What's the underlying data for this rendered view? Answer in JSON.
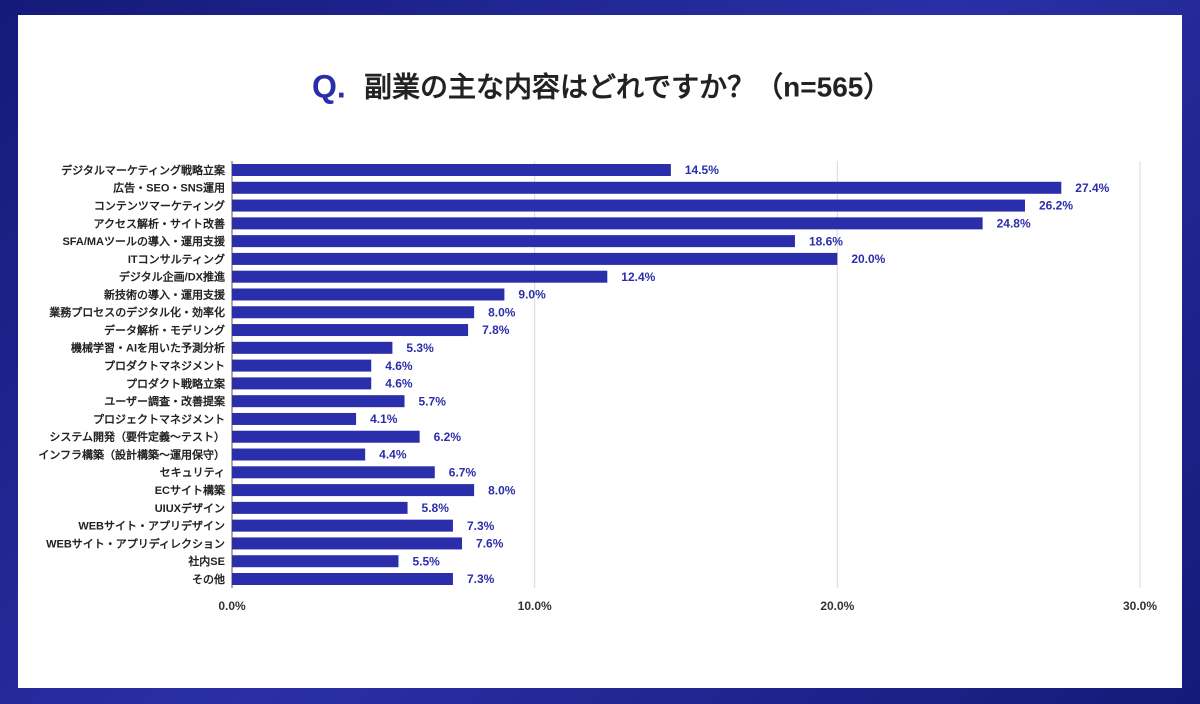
{
  "chart_data": {
    "type": "hbar",
    "title_marker": "Q.",
    "title": "副業の主な内容はどれですか？（n=565）",
    "categories": [
      "デジタルマーケティング戦略立案",
      "広告・SEO・SNS運用",
      "コンテンツマーケティング",
      "アクセス解析・サイト改善",
      "SFA/MAツールの導入・運用支援",
      "ITコンサルティング",
      "デジタル企画/DX推進",
      "新技術の導入・運用支援",
      "業務プロセスのデジタル化・効率化",
      "データ解析・モデリング",
      "機械学習・AIを用いた予測分析",
      "プロダクトマネジメント",
      "プロダクト戦略立案",
      "ユーザー調査・改善提案",
      "プロジェクトマネジメント",
      "システム開発（要件定義～テスト）",
      "インフラ構築（設計構築～運用保守）",
      "セキュリティ",
      "ECサイト構築",
      "UIUXデザイン",
      "WEBサイト・アプリデザイン",
      "WEBサイト・アプリディレクション",
      "社内SE",
      "その他"
    ],
    "values": [
      14.5,
      27.4,
      26.2,
      24.8,
      18.6,
      20.0,
      12.4,
      9.0,
      8.0,
      7.8,
      5.3,
      4.6,
      4.6,
      5.7,
      4.1,
      6.2,
      4.4,
      6.7,
      8.0,
      5.8,
      7.3,
      7.6,
      5.5,
      7.3
    ],
    "value_labels": [
      "14.5%",
      "27.4%",
      "26.2%",
      "24.8%",
      "18.6%",
      "20.0%",
      "12.4%",
      "9.0%",
      "8.0%",
      "7.8%",
      "5.3%",
      "4.6%",
      "4.6%",
      "5.7%",
      "4.1%",
      "6.2%",
      "4.4%",
      "6.7%",
      "8.0%",
      "5.8%",
      "7.3%",
      "7.6%",
      "5.5%",
      "7.3%"
    ],
    "color": "#2b2eaa",
    "xlim": [
      0,
      30
    ],
    "xticks": [
      {
        "value": 0,
        "label": "0.0%"
      },
      {
        "value": 10,
        "label": "10.0%"
      },
      {
        "value": 20,
        "label": "20.0%"
      },
      {
        "value": 30,
        "label": "30.0%"
      }
    ],
    "grid": true
  }
}
